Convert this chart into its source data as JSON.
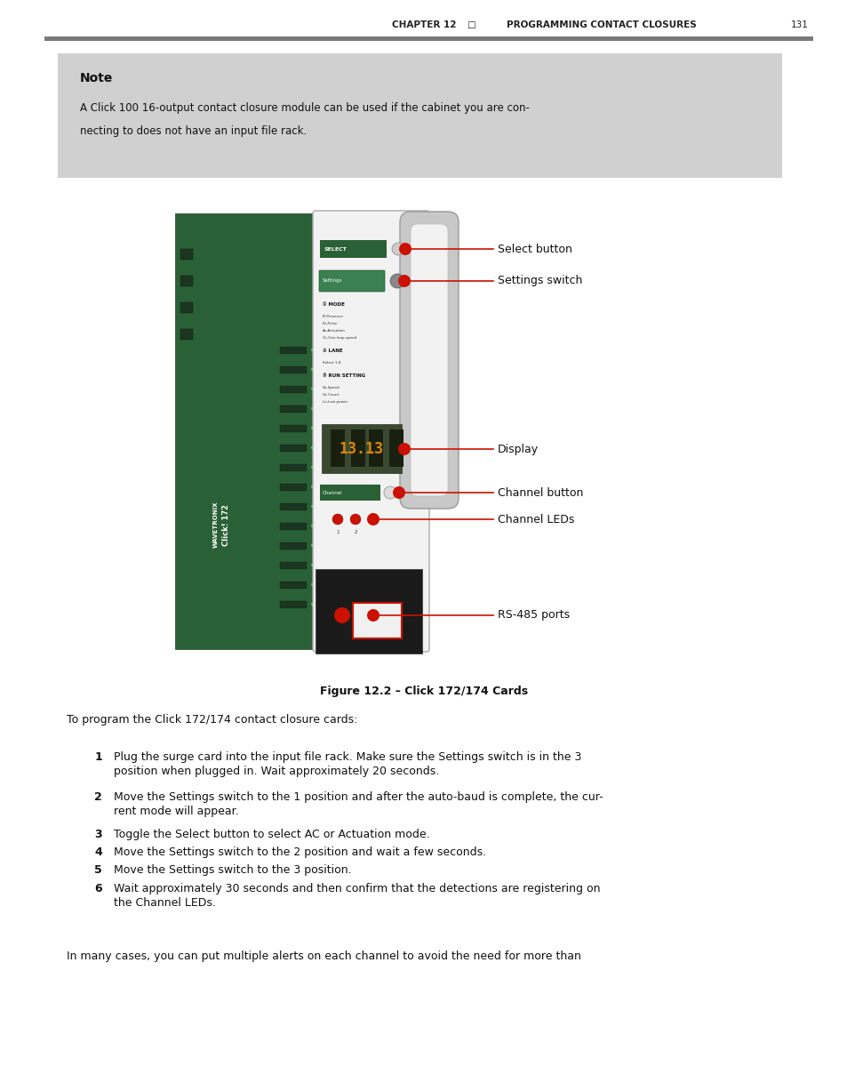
{
  "page_bg": "#ffffff",
  "header_line_color": "#777777",
  "header_text_left": "CHAPTER 12",
  "header_text_mid": "□",
  "header_text_right": "PROGRAMMING CONTACT CLOSURES",
  "header_page_num": "131",
  "note_bg": "#d0d0d0",
  "note_title": "Note",
  "note_body_line1": "A Click 100 16-output contact closure module can be used if the cabinet you are con-",
  "note_body_line2": "necting to does not have an input file rack.",
  "figure_caption": "Figure 12.2 – Click 172/174 Cards",
  "label_select_btn": "Select button",
  "label_settings_sw": "Settings switch",
  "label_display": "Display",
  "label_channel_btn": "Channel button",
  "label_channel_leds": "Channel LEDs",
  "label_rs485": "RS-485 ports",
  "intro_text": "To program the Click 172/174 contact closure cards:",
  "step1_num": "1",
  "step1a": "Plug the surge card into the input file rack. Make sure the Settings switch is in the 3",
  "step1b": "position when plugged in. Wait approximately 20 seconds.",
  "step2_num": "2",
  "step2a": "Move the Settings switch to the 1 position and after the auto-baud is complete, the cur-",
  "step2b": "rent mode will appear.",
  "step3_num": "3",
  "step3": "Toggle the Select button to select AC or Actuation mode.",
  "step4_num": "4",
  "step4": "Move the Settings switch to the 2 position and wait a few seconds.",
  "step5_num": "5",
  "step5": "Move the Settings switch to the 3 position.",
  "step6_num": "6",
  "step6a": "Wait approximately 30 seconds and then confirm that the detections are registering on",
  "step6b": "the Channel LEDs.",
  "closing": "In many cases, you can put multiple alerts on each channel to avoid the need for more than"
}
